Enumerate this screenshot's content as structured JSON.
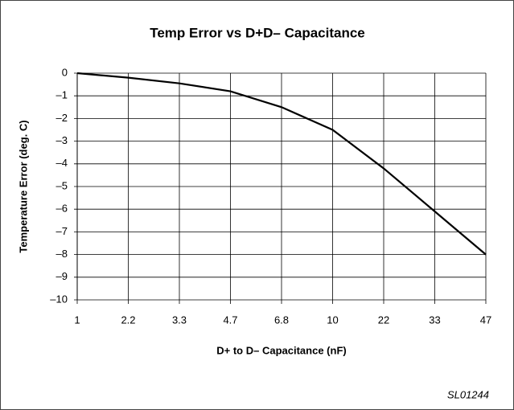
{
  "chart_data": {
    "type": "line",
    "title": "Temp Error vs D+D– Capacitance",
    "xlabel": "D+ to D– Capacitance (nF)",
    "ylabel": "Temperature Error (deg. C)",
    "categories": [
      "1",
      "2.2",
      "3.3",
      "4.7",
      "6.8",
      "10",
      "22",
      "33",
      "47"
    ],
    "values": [
      0,
      -0.2,
      -0.45,
      -0.8,
      -1.5,
      -2.5,
      -4.2,
      -6.1,
      -8.0
    ],
    "color": "#000000",
    "ylim": [
      -10,
      0
    ],
    "yticks": [
      0,
      {
        "value": -1,
        "label": "–1"
      },
      {
        "value": -2,
        "label": "–2"
      },
      {
        "value": -3,
        "label": "–3"
      },
      {
        "value": -4,
        "label": "–4"
      },
      {
        "value": -5,
        "label": "–5"
      },
      {
        "value": -6,
        "label": "–6"
      },
      {
        "value": -7,
        "label": "–7"
      },
      {
        "value": -8,
        "label": "–8"
      },
      {
        "value": -9,
        "label": "–9"
      },
      {
        "value": -10,
        "label": "–10"
      }
    ],
    "grid": true,
    "footnote": "SL01244"
  }
}
